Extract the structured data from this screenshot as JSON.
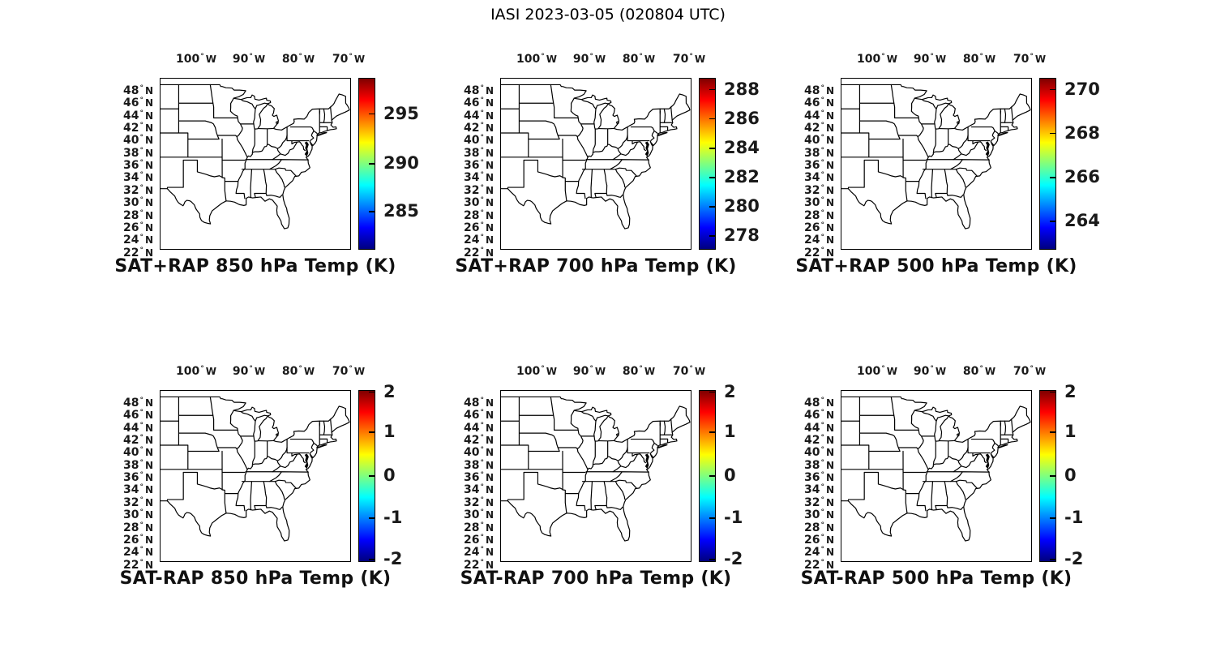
{
  "figure_title": "IASI 2023-03-05 (020804 UTC)",
  "colors": {
    "background": "#ffffff",
    "line": "#000000",
    "text": "#1a1a1a",
    "colormap_name": "jet",
    "colormap_stops_top_to_bottom": [
      "#7f0000",
      "#ff0000",
      "#ff7f00",
      "#ffff00",
      "#7fff7f",
      "#00ffff",
      "#007fff",
      "#0000ff",
      "#00007f"
    ]
  },
  "axes": {
    "degree": "°",
    "lon_suffix": "W",
    "lat_suffix": "N",
    "lon_ticks": [
      "100",
      "90",
      "80",
      "70"
    ],
    "lat_ticks": [
      "48",
      "46",
      "44",
      "42",
      "40",
      "38",
      "36",
      "34",
      "32",
      "30",
      "28",
      "26",
      "24",
      "22"
    ]
  },
  "panels": [
    {
      "id": "sat-plus-rap-850",
      "title": "SAT+RAP 850 hPa Temp (K)",
      "colorbar": {
        "ticks": [
          {
            "label": "295",
            "pos": 0.21
          },
          {
            "label": "290",
            "pos": 0.5
          },
          {
            "label": "285",
            "pos": 0.78
          }
        ]
      }
    },
    {
      "id": "sat-plus-rap-700",
      "title": "SAT+RAP 700 hPa Temp (K)",
      "colorbar": {
        "ticks": [
          {
            "label": "288",
            "pos": 0.07
          },
          {
            "label": "286",
            "pos": 0.24
          },
          {
            "label": "284",
            "pos": 0.41
          },
          {
            "label": "282",
            "pos": 0.58
          },
          {
            "label": "280",
            "pos": 0.75
          },
          {
            "label": "278",
            "pos": 0.92
          }
        ]
      }
    },
    {
      "id": "sat-plus-rap-500",
      "title": "SAT+RAP 500 hPa Temp (K)",
      "colorbar": {
        "ticks": [
          {
            "label": "270",
            "pos": 0.07
          },
          {
            "label": "268",
            "pos": 0.325
          },
          {
            "label": "266",
            "pos": 0.58
          },
          {
            "label": "264",
            "pos": 0.835
          }
        ]
      }
    },
    {
      "id": "sat-minus-rap-850",
      "title": "SAT-RAP 850 hPa Temp (K)",
      "colorbar": {
        "ticks": [
          {
            "label": "2",
            "pos": 0.012
          },
          {
            "label": "1",
            "pos": 0.2475
          },
          {
            "label": "0",
            "pos": 0.5
          },
          {
            "label": "-1",
            "pos": 0.7465
          },
          {
            "label": "-2",
            "pos": 0.988
          }
        ]
      }
    },
    {
      "id": "sat-minus-rap-700",
      "title": "SAT-RAP 700 hPa Temp (K)",
      "colorbar": {
        "ticks": [
          {
            "label": "2",
            "pos": 0.012
          },
          {
            "label": "1",
            "pos": 0.2475
          },
          {
            "label": "0",
            "pos": 0.5
          },
          {
            "label": "-1",
            "pos": 0.7465
          },
          {
            "label": "-2",
            "pos": 0.988
          }
        ]
      }
    },
    {
      "id": "sat-minus-rap-500",
      "title": "SAT-RAP 500 hPa Temp (K)",
      "colorbar": {
        "ticks": [
          {
            "label": "2",
            "pos": 0.012
          },
          {
            "label": "1",
            "pos": 0.2475
          },
          {
            "label": "0",
            "pos": 0.5
          },
          {
            "label": "-1",
            "pos": 0.7465
          },
          {
            "label": "-2",
            "pos": 0.988
          }
        ]
      }
    }
  ],
  "chart_data": [
    {
      "type": "map",
      "panel": "top-left",
      "title": "SAT+RAP 850 hPa Temp (K)",
      "lon_ticks_degW": [
        100,
        90,
        80,
        70
      ],
      "lat_ticks_degN": [
        48,
        46,
        44,
        42,
        40,
        38,
        36,
        34,
        32,
        30,
        28,
        26,
        24,
        22
      ],
      "colorbar": {
        "colormap": "jet",
        "units": "K",
        "tick_values": [
          295,
          290,
          285
        ],
        "approx_range": [
          281.5,
          298.5
        ]
      },
      "map_content": "US state boundaries (central/eastern CONUS); no data field plotted"
    },
    {
      "type": "map",
      "panel": "top-center",
      "title": "SAT+RAP 700 hPa Temp (K)",
      "lon_ticks_degW": [
        100,
        90,
        80,
        70
      ],
      "lat_ticks_degN": [
        48,
        46,
        44,
        42,
        40,
        38,
        36,
        34,
        32,
        30,
        28,
        26,
        24,
        22
      ],
      "colorbar": {
        "colormap": "jet",
        "units": "K",
        "tick_values": [
          288,
          286,
          284,
          282,
          280,
          278
        ],
        "approx_range": [
          277,
          289
        ]
      },
      "map_content": "US state boundaries (central/eastern CONUS); no data field plotted"
    },
    {
      "type": "map",
      "panel": "top-right",
      "title": "SAT+RAP 500 hPa Temp (K)",
      "lon_ticks_degW": [
        100,
        90,
        80,
        70
      ],
      "lat_ticks_degN": [
        48,
        46,
        44,
        42,
        40,
        38,
        36,
        34,
        32,
        30,
        28,
        26,
        24,
        22
      ],
      "colorbar": {
        "colormap": "jet",
        "units": "K",
        "tick_values": [
          270,
          268,
          266,
          264
        ],
        "approx_range": [
          263.5,
          270.5
        ]
      },
      "map_content": "US state boundaries (central/eastern CONUS); no data field plotted"
    },
    {
      "type": "map",
      "panel": "bottom-left",
      "title": "SAT-RAP 850 hPa Temp (K)",
      "lon_ticks_degW": [
        100,
        90,
        80,
        70
      ],
      "lat_ticks_degN": [
        48,
        46,
        44,
        42,
        40,
        38,
        36,
        34,
        32,
        30,
        28,
        26,
        24,
        22
      ],
      "colorbar": {
        "colormap": "jet",
        "units": "K",
        "tick_values": [
          2,
          1,
          0,
          -1,
          -2
        ],
        "approx_range": [
          -2,
          2
        ]
      },
      "map_content": "US state boundaries (central/eastern CONUS); no data field plotted"
    },
    {
      "type": "map",
      "panel": "bottom-center",
      "title": "SAT-RAP 700 hPa Temp (K)",
      "lon_ticks_degW": [
        100,
        90,
        80,
        70
      ],
      "lat_ticks_degN": [
        48,
        46,
        44,
        42,
        40,
        38,
        36,
        34,
        32,
        30,
        28,
        26,
        24,
        22
      ],
      "colorbar": {
        "colormap": "jet",
        "units": "K",
        "tick_values": [
          2,
          1,
          0,
          -1,
          -2
        ],
        "approx_range": [
          -2,
          2
        ]
      },
      "map_content": "US state boundaries (central/eastern CONUS); no data field plotted"
    },
    {
      "type": "map",
      "panel": "bottom-right",
      "title": "SAT-RAP 500 hPa Temp (K)",
      "lon_ticks_degW": [
        100,
        90,
        80,
        70
      ],
      "lat_ticks_degN": [
        48,
        46,
        44,
        42,
        40,
        38,
        36,
        34,
        32,
        30,
        28,
        26,
        24,
        22
      ],
      "colorbar": {
        "colormap": "jet",
        "units": "K",
        "tick_values": [
          2,
          1,
          0,
          -1,
          -2
        ],
        "approx_range": [
          -2,
          2
        ]
      },
      "map_content": "US state boundaries (central/eastern CONUS); no data field plotted"
    }
  ]
}
